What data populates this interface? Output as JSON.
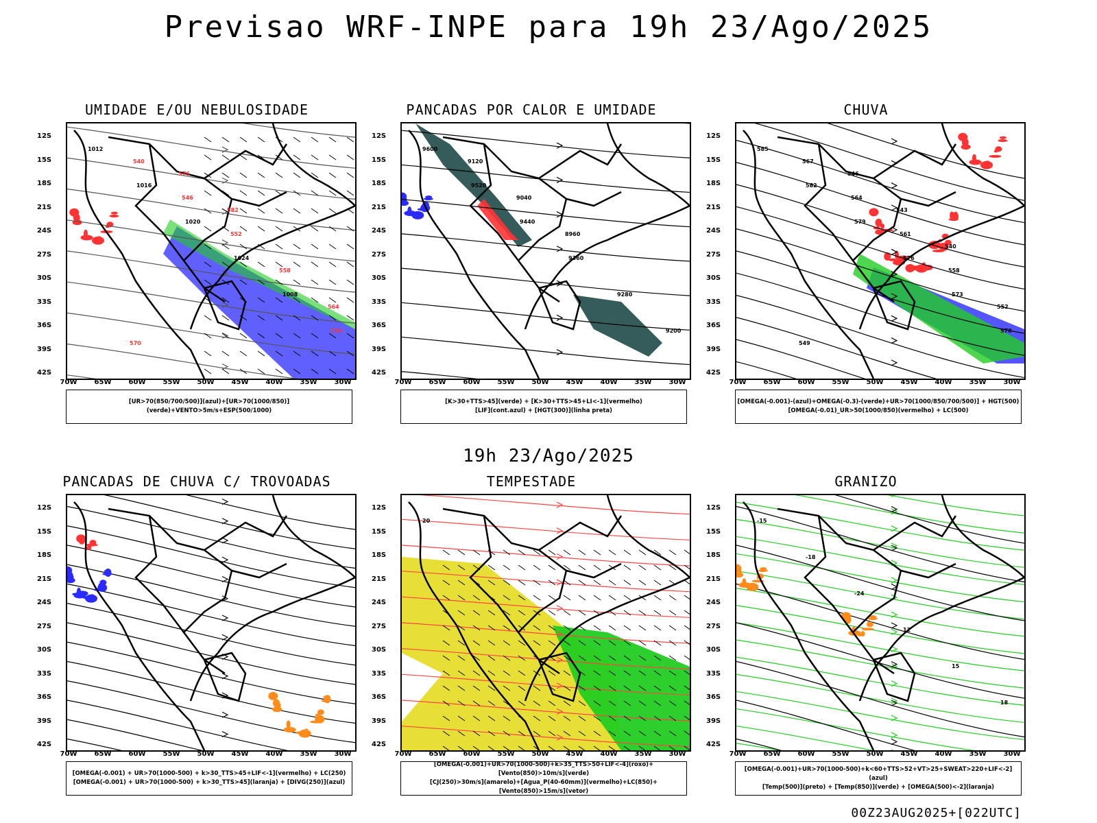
{
  "main_title": "Previsao WRF-INPE  para 19h 23/Ago/2025",
  "mid_label": "19h 23/Ago/2025",
  "footer": "00Z23AUG2025+[022UTC]",
  "axes": {
    "lat_ticks": [
      "12S",
      "15S",
      "18S",
      "21S",
      "24S",
      "27S",
      "30S",
      "33S",
      "36S",
      "39S",
      "42S"
    ],
    "lon_ticks": [
      "70W",
      "65W",
      "60W",
      "55W",
      "50W",
      "45W",
      "40W",
      "35W",
      "30W"
    ]
  },
  "colors": {
    "blue": "#2b2bff",
    "green": "#22cc22",
    "red": "#ff3333",
    "orange": "#ff8c1a",
    "yellow": "#e6dd2a",
    "darkteal": "#1f4a48"
  },
  "panels": [
    {
      "title": "UMIDADE E/OU NEBULOSIDADE",
      "legend": [
        "[UR>70(850/700/500)](azul)+[UR>70(1000/850)](verde)+VENTO>5m/s+ESP(500/1000)"
      ],
      "labels": [
        "1012",
        "1016",
        "1020",
        "1024",
        "1008",
        "534",
        "540",
        "546",
        "552",
        "558",
        "564",
        "570",
        "576",
        "582"
      ]
    },
    {
      "title": "PANCADAS POR CALOR E UMIDADE",
      "legend": [
        "[K>30+TTS>45](verde) + [K>30+TTS>45+LI<-1](vermelho)",
        "[LIF](cont.azul) + [HGT(300)](linha preta)"
      ],
      "labels": [
        "9600",
        "9520",
        "9440",
        "9360",
        "9280",
        "9200",
        "9120",
        "9040",
        "8960"
      ]
    },
    {
      "title": "CHUVA",
      "legend": [
        "[OMEGA(-0.001)-(azul)+OMEGA(-0.3)-(verde)+UR>70(1000/850/700/500)] + HGT(500)",
        "[OMEGA(-0.01)_UR>50(1000/850)(vermelho) + LC(500)"
      ],
      "labels": [
        "585",
        "582",
        "579",
        "576",
        "573",
        "570",
        "567",
        "564",
        "561",
        "558",
        "552",
        "549",
        "546",
        "543",
        "540"
      ]
    },
    {
      "title": "PANCADAS DE CHUVA C/ TROVOADAS",
      "legend": [
        "[OMEGA(-0.001) + UR>70(1000-500) + k>30_TTS>45+LIF<-1](vermelho) + LC(250)",
        "[OMEGA(-0.001) + UR>70(1000-500) + k>30_TTS>45](laranja) + [DIVG(250)](azul)"
      ],
      "labels": []
    },
    {
      "title": "TEMPESTADE",
      "legend": [
        "[OMEGA(-0.001)+UR>70(1000-500)+k>35_TTS>50+LIF<-4](roxo)+[Vento(850)>10m/s](verde)",
        "[CJ(250)>30m/s](amarelo)+[Agua_P(40-60mm)](vermelho)+LC(850)+[Vento(850)>15m/s](vetor)"
      ],
      "labels": [
        "20"
      ]
    },
    {
      "title": "GRANIZO",
      "legend": [
        "[OMEGA(-0.001)+UR>70(1000-500)+k<60+TTS>52+VT>25+SWEAT>220+LIF<-2](azul)",
        "[Temp(500)](preto) + [Temp(850)](verde) + [OMEGA(500)<-2](laranja)"
      ],
      "labels": [
        "-15",
        "-18",
        "-24",
        "12",
        "15",
        "18"
      ]
    }
  ]
}
